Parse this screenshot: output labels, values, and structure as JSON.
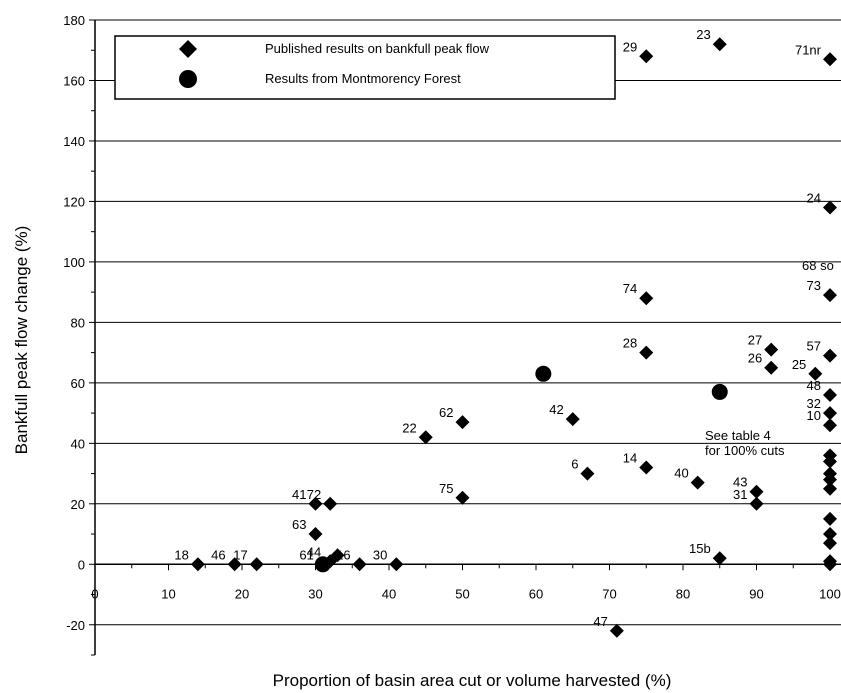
{
  "chart_data": {
    "type": "scatter",
    "xlabel": "Proportion of basin area cut or volume harvested (%)",
    "ylabel": "Bankfull peak flow change (%)",
    "xlim": [
      0,
      100
    ],
    "ylim": [
      -30,
      180
    ],
    "x_ticks": [
      0,
      10,
      20,
      30,
      40,
      50,
      60,
      70,
      80,
      90,
      100
    ],
    "x_tick_labels": [
      "0",
      "10",
      "20",
      "30",
      "40",
      "50",
      "60",
      "70",
      "80",
      "90",
      "100"
    ],
    "y_ticks": [
      -20,
      0,
      20,
      40,
      60,
      80,
      100,
      120,
      140,
      160,
      180
    ],
    "y_tick_labels": [
      "-20",
      "0",
      "20",
      "40",
      "60",
      "80",
      "100",
      "120",
      "140",
      "160",
      "180"
    ],
    "grid": "horizontal",
    "legend_position": "top-left",
    "annotation": [
      "See table 4",
      "for 100% cuts"
    ],
    "series": [
      {
        "name": "Published results on bankfull peak flow",
        "marker": "diamond",
        "color": "#000000",
        "points": [
          {
            "x": 14,
            "y": 0,
            "label": "18"
          },
          {
            "x": 19,
            "y": 0,
            "label": "46"
          },
          {
            "x": 22,
            "y": 0,
            "label": "17"
          },
          {
            "x": 30,
            "y": 20,
            "label": "41"
          },
          {
            "x": 32,
            "y": 20,
            "label": "72"
          },
          {
            "x": 30,
            "y": 10,
            "label": "63"
          },
          {
            "x": 32,
            "y": 1,
            "label": "44"
          },
          {
            "x": 33,
            "y": 3,
            "label": ""
          },
          {
            "x": 31,
            "y": 0,
            "label": "61"
          },
          {
            "x": 36,
            "y": 0,
            "label": "16"
          },
          {
            "x": 41,
            "y": 0,
            "label": "30"
          },
          {
            "x": 45,
            "y": 42,
            "label": "22"
          },
          {
            "x": 50,
            "y": 47,
            "label": "62"
          },
          {
            "x": 50,
            "y": 22,
            "label": "75"
          },
          {
            "x": 65,
            "y": 48,
            "label": "42"
          },
          {
            "x": 67,
            "y": 30,
            "label": "6"
          },
          {
            "x": 71,
            "y": -22,
            "label": "47"
          },
          {
            "x": 75,
            "y": 168,
            "label": "29"
          },
          {
            "x": 75,
            "y": 88,
            "label": "74"
          },
          {
            "x": 75,
            "y": 70,
            "label": "28"
          },
          {
            "x": 75,
            "y": 32,
            "label": "14"
          },
          {
            "x": 82,
            "y": 27,
            "label": "40"
          },
          {
            "x": 85,
            "y": 172,
            "label": "23"
          },
          {
            "x": 85,
            "y": 2,
            "label": "15b"
          },
          {
            "x": 90,
            "y": 24,
            "label": "43"
          },
          {
            "x": 90,
            "y": 20,
            "label": "31"
          },
          {
            "x": 92,
            "y": 71,
            "label": "27"
          },
          {
            "x": 92,
            "y": 65,
            "label": "26"
          },
          {
            "x": 98,
            "y": 63,
            "label": "25"
          },
          {
            "x": 100,
            "y": 167,
            "label": "71nr"
          },
          {
            "x": 100,
            "y": 118,
            "label": "24"
          },
          {
            "x": 100,
            "y": 89,
            "label": "73"
          },
          {
            "x": 100,
            "y": 69,
            "label": "57"
          },
          {
            "x": 100,
            "y": 56,
            "label": "48"
          },
          {
            "x": 100,
            "y": 50,
            "label": "32"
          },
          {
            "x": 100,
            "y": 46,
            "label": "10"
          },
          {
            "x": 100,
            "y": 36,
            "label": ""
          },
          {
            "x": 100,
            "y": 34,
            "label": ""
          },
          {
            "x": 100,
            "y": 30,
            "label": ""
          },
          {
            "x": 100,
            "y": 28,
            "label": ""
          },
          {
            "x": 100,
            "y": 25,
            "label": ""
          },
          {
            "x": 100,
            "y": 15,
            "label": ""
          },
          {
            "x": 100,
            "y": 10,
            "label": ""
          },
          {
            "x": 100,
            "y": 7,
            "label": ""
          },
          {
            "x": 100,
            "y": 1,
            "label": ""
          },
          {
            "x": 100,
            "y": 0,
            "label": ""
          }
        ],
        "extra_labels": [
          {
            "x": 100,
            "y": 96,
            "label": "68 so"
          }
        ]
      },
      {
        "name": "Results from Montmorency Forest",
        "marker": "circle",
        "color": "#000000",
        "points": [
          {
            "x": 61,
            "y": 63,
            "label": ""
          },
          {
            "x": 85,
            "y": 57,
            "label": ""
          },
          {
            "x": 31,
            "y": 0,
            "label": ""
          }
        ]
      }
    ]
  }
}
